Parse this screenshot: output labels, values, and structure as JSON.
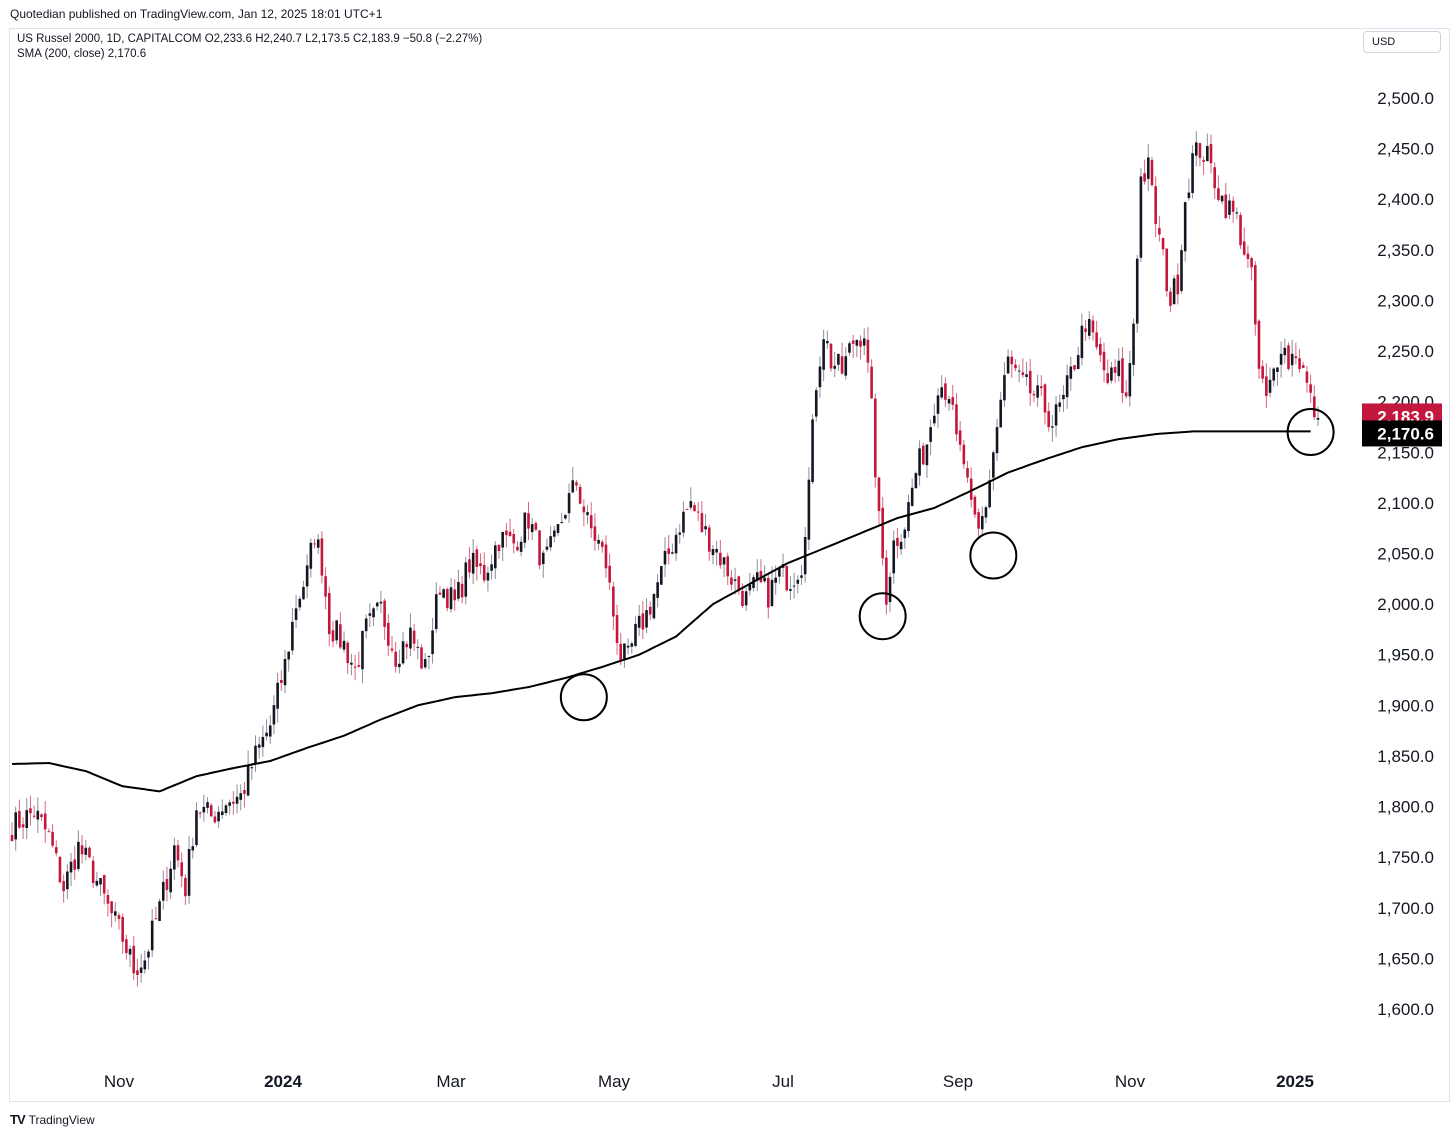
{
  "publisher": "Quotedian published on TradingView.com, Jan 12, 2025 18:01 UTC+1",
  "legend": {
    "symbol": "US Russel 2000, 1D, CAPITALCOM",
    "ohlc": "O2,233.6  H2,240.7  L2,173.5  C2,183.9  −50.8 (−2.27%)",
    "indicator": "SMA (200, close)  2,170.6"
  },
  "currency": "USD",
  "footer": {
    "logo": "TV",
    "brand": "TradingView"
  },
  "colors": {
    "up": "#131722",
    "down": "#c4173d",
    "sma": "#000000",
    "price_tag": "#c4173d",
    "sma_tag": "#000000"
  },
  "chart_data": {
    "type": "candlestick",
    "interval": "1D",
    "y_ticks": [
      "1,600.0",
      "1,650.0",
      "1,700.0",
      "1,750.0",
      "1,800.0",
      "1,850.0",
      "1,900.0",
      "1,950.0",
      "2,000.0",
      "2,050.0",
      "2,100.0",
      "2,150.0",
      "2,200.0",
      "2,250.0",
      "2,300.0",
      "2,350.0",
      "2,400.0",
      "2,450.0",
      "2,500.0"
    ],
    "x_ticks": [
      "Nov",
      "2024",
      "Mar",
      "May",
      "Jul",
      "Sep",
      "Nov",
      "2025"
    ],
    "ylim": [
      1585,
      2545
    ],
    "last_price_label": "2,183.9",
    "sma_label": "2,170.6",
    "last_price": 2183.9,
    "sma_last": 2170.6,
    "price_path": [
      [
        0,
        1780
      ],
      [
        6,
        1795
      ],
      [
        10,
        1770
      ],
      [
        14,
        1720
      ],
      [
        18,
        1760
      ],
      [
        22,
        1735
      ],
      [
        26,
        1700
      ],
      [
        30,
        1670
      ],
      [
        33,
        1640
      ],
      [
        36,
        1650
      ],
      [
        40,
        1700
      ],
      [
        44,
        1760
      ],
      [
        47,
        1720
      ],
      [
        50,
        1800
      ],
      [
        54,
        1790
      ],
      [
        58,
        1805
      ],
      [
        62,
        1810
      ],
      [
        66,
        1850
      ],
      [
        70,
        1880
      ],
      [
        74,
        1940
      ],
      [
        77,
        2000
      ],
      [
        80,
        2030
      ],
      [
        82,
        2070
      ],
      [
        84,
        2040
      ],
      [
        86,
        1980
      ],
      [
        90,
        1960
      ],
      [
        93,
        1935
      ],
      [
        96,
        1975
      ],
      [
        100,
        1995
      ],
      [
        104,
        1950
      ],
      [
        108,
        1970
      ],
      [
        112,
        1935
      ],
      [
        116,
        2020
      ],
      [
        120,
        2000
      ],
      [
        124,
        2040
      ],
      [
        128,
        2030
      ],
      [
        132,
        2065
      ],
      [
        136,
        2060
      ],
      [
        140,
        2085
      ],
      [
        144,
        2040
      ],
      [
        147,
        2060
      ],
      [
        150,
        2095
      ],
      [
        153,
        2120
      ],
      [
        156,
        2080
      ],
      [
        159,
        2060
      ],
      [
        161,
        2040
      ],
      [
        163,
        1990
      ],
      [
        165,
        1950
      ],
      [
        167,
        1945
      ],
      [
        169,
        1970
      ],
      [
        172,
        1990
      ],
      [
        175,
        2020
      ],
      [
        178,
        2050
      ],
      [
        181,
        2080
      ],
      [
        184,
        2100
      ],
      [
        187,
        2075
      ],
      [
        190,
        2060
      ],
      [
        193,
        2040
      ],
      [
        196,
        2020
      ],
      [
        199,
        2005
      ],
      [
        202,
        2020
      ],
      [
        205,
        2010
      ],
      [
        208,
        2030
      ],
      [
        211,
        2025
      ],
      [
        214,
        2040
      ],
      [
        216,
        2120
      ],
      [
        218,
        2220
      ],
      [
        220,
        2270
      ],
      [
        222,
        2240
      ],
      [
        225,
        2230
      ],
      [
        228,
        2260
      ],
      [
        231,
        2270
      ],
      [
        233,
        2190
      ],
      [
        235,
        2080
      ],
      [
        237,
        2010
      ],
      [
        239,
        2060
      ],
      [
        242,
        2080
      ],
      [
        245,
        2130
      ],
      [
        248,
        2160
      ],
      [
        251,
        2220
      ],
      [
        254,
        2210
      ],
      [
        256,
        2160
      ],
      [
        258,
        2140
      ],
      [
        260,
        2090
      ],
      [
        262,
        2070
      ],
      [
        264,
        2100
      ],
      [
        266,
        2150
      ],
      [
        268,
        2200
      ],
      [
        270,
        2240
      ],
      [
        273,
        2220
      ],
      [
        276,
        2210
      ],
      [
        279,
        2200
      ],
      [
        282,
        2180
      ],
      [
        285,
        2200
      ],
      [
        288,
        2240
      ],
      [
        291,
        2280
      ],
      [
        294,
        2250
      ],
      [
        297,
        2220
      ],
      [
        300,
        2230
      ],
      [
        302,
        2200
      ],
      [
        304,
        2280
      ],
      [
        306,
        2420
      ],
      [
        308,
        2430
      ],
      [
        310,
        2380
      ],
      [
        312,
        2340
      ],
      [
        314,
        2300
      ],
      [
        316,
        2320
      ],
      [
        318,
        2400
      ],
      [
        320,
        2440
      ],
      [
        322,
        2450
      ],
      [
        324,
        2440
      ],
      [
        326,
        2420
      ],
      [
        328,
        2400
      ],
      [
        330,
        2390
      ],
      [
        332,
        2380
      ],
      [
        334,
        2350
      ],
      [
        336,
        2320
      ],
      [
        338,
        2230
      ],
      [
        340,
        2200
      ],
      [
        342,
        2230
      ],
      [
        344,
        2260
      ],
      [
        346,
        2240
      ],
      [
        348,
        2250
      ],
      [
        350,
        2230
      ],
      [
        352,
        2200
      ],
      [
        354,
        2184
      ]
    ],
    "sma_path": [
      [
        0,
        1842
      ],
      [
        10,
        1843
      ],
      [
        20,
        1835
      ],
      [
        30,
        1820
      ],
      [
        40,
        1815
      ],
      [
        50,
        1830
      ],
      [
        60,
        1838
      ],
      [
        70,
        1845
      ],
      [
        80,
        1858
      ],
      [
        90,
        1870
      ],
      [
        100,
        1886
      ],
      [
        110,
        1900
      ],
      [
        120,
        1908
      ],
      [
        130,
        1912
      ],
      [
        140,
        1918
      ],
      [
        150,
        1927
      ],
      [
        160,
        1938
      ],
      [
        170,
        1950
      ],
      [
        180,
        1968
      ],
      [
        190,
        2000
      ],
      [
        200,
        2020
      ],
      [
        210,
        2040
      ],
      [
        220,
        2055
      ],
      [
        230,
        2070
      ],
      [
        240,
        2085
      ],
      [
        250,
        2095
      ],
      [
        260,
        2112
      ],
      [
        270,
        2130
      ],
      [
        280,
        2143
      ],
      [
        290,
        2155
      ],
      [
        300,
        2163
      ],
      [
        310,
        2168
      ],
      [
        320,
        2170.6
      ]
    ],
    "highlighted_touches": [
      {
        "date": "Apr 2024",
        "value": 1908
      },
      {
        "date": "Aug 2024",
        "value": 1988
      },
      {
        "date": "Sep 2024",
        "value": 2048
      },
      {
        "date": "Jan 2025",
        "value": 2170
      }
    ]
  }
}
